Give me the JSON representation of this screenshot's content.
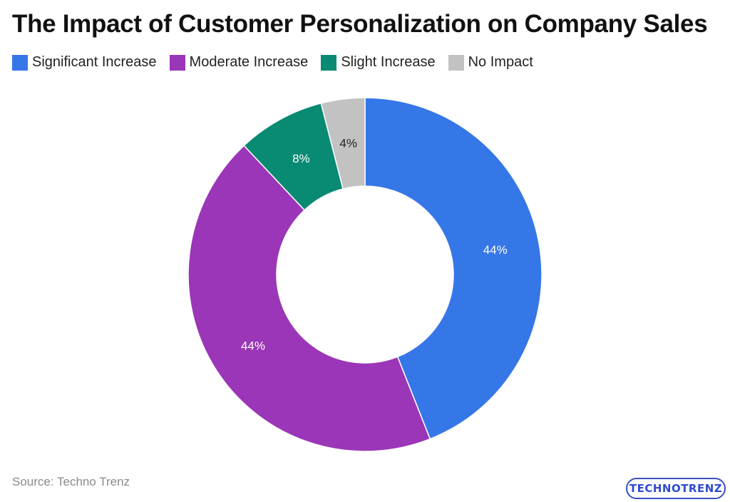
{
  "title": "The Impact of Customer Personalization on Company Sales",
  "source": "Source: Techno Trenz",
  "logo_text": "TECHNOTRENZ",
  "chart_data": {
    "type": "pie",
    "donut": true,
    "title": "The Impact of Customer Personalization on Company Sales",
    "legend_placement": "top-left",
    "categories": [
      "Significant Increase",
      "Moderate Increase",
      "Slight Increase",
      "No Impact"
    ],
    "values": [
      44,
      44,
      8,
      4
    ],
    "labels": [
      "44%",
      "44%",
      "8%",
      "4%"
    ],
    "colors": [
      "#3677e8",
      "#9a36b7",
      "#098a72",
      "#c2c2c2"
    ],
    "label_colors": [
      "#ffffff",
      "#ffffff",
      "#ffffff",
      "#222222"
    ]
  }
}
